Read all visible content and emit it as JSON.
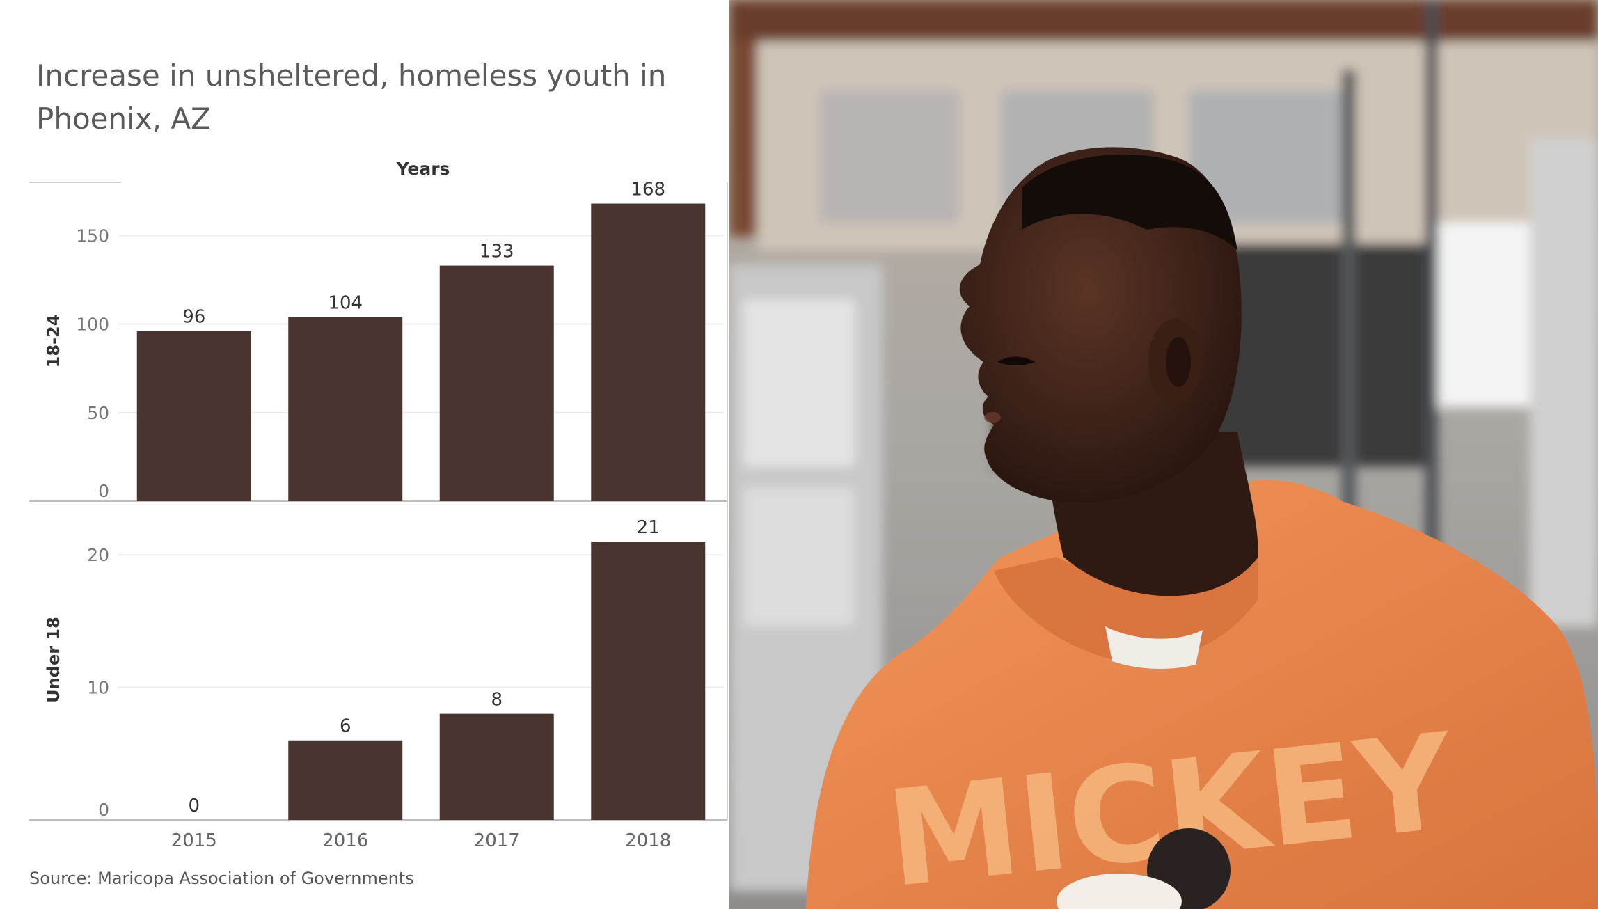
{
  "title": "Increase in unsheltered, homeless youth  in Phoenix, AZ",
  "source": "Source: Maricopa Association of Governments",
  "chart_data": {
    "type": "bar",
    "column_header": "Years",
    "categories": [
      "2015",
      "2016",
      "2017",
      "2018"
    ],
    "bar_color": "#4a3430",
    "panels": [
      {
        "row_label": "18-24",
        "values": [
          96,
          104,
          133,
          168
        ],
        "ylim": [
          0,
          180
        ],
        "yticks": [
          0,
          50,
          100,
          150
        ]
      },
      {
        "row_label": "Under 18",
        "values": [
          0,
          6,
          8,
          21
        ],
        "ylim": [
          0,
          23
        ],
        "yticks": [
          0,
          10,
          20
        ]
      }
    ]
  },
  "photo": {
    "hoodie_color": "#e8864d",
    "hoodie_text": "MICKEY"
  }
}
